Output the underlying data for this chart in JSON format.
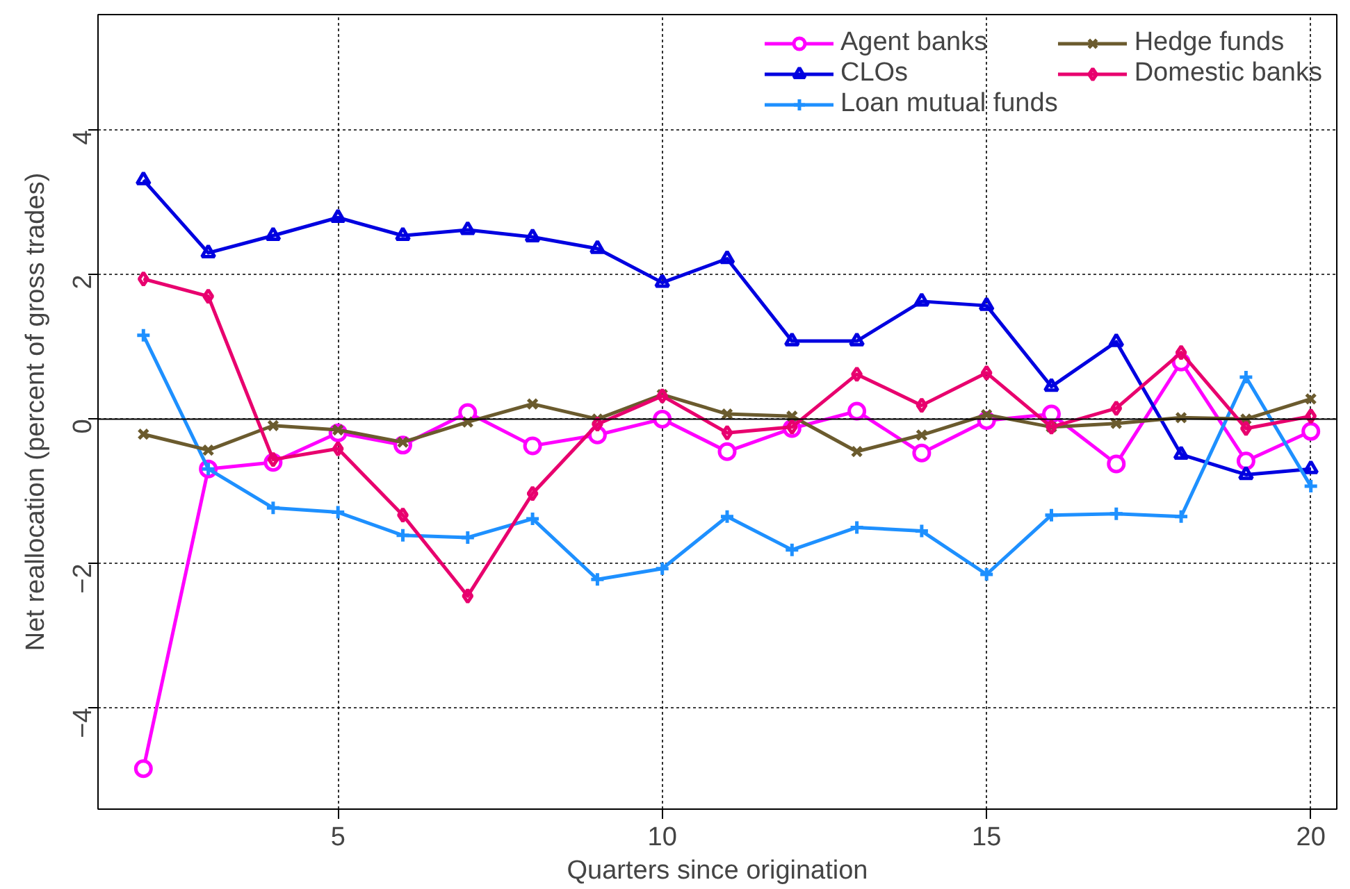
{
  "chart_data": {
    "type": "line",
    "xlabel": "Quarters since origination",
    "ylabel": "Net reallocation (percent of gross trades)",
    "x": [
      2,
      3,
      4,
      5,
      6,
      7,
      8,
      9,
      10,
      11,
      12,
      13,
      14,
      15,
      16,
      17,
      18,
      19,
      20
    ],
    "xlim": [
      1.3,
      20.4
    ],
    "ylim": [
      -5.4,
      5.6
    ],
    "xticks": [
      5,
      10,
      15,
      20
    ],
    "yticks": [
      -4,
      -2,
      0,
      2,
      4
    ],
    "grid": true,
    "legend": "top right",
    "line_style": "solid",
    "ref_lines": [
      {
        "axis": "y",
        "value": 0,
        "color": "#000000",
        "line_style": "solid"
      }
    ],
    "series": [
      {
        "name": "Agent banks",
        "color": "#ff00ff",
        "marker": "circle",
        "values": [
          -4.84,
          -0.69,
          -0.6,
          -0.19,
          -0.36,
          0.09,
          -0.37,
          -0.22,
          0,
          -0.45,
          -0.13,
          0.11,
          -0.47,
          -0.02,
          0.07,
          -0.62,
          0.79,
          -0.58,
          -0.17
        ]
      },
      {
        "name": "CLOs",
        "color": "#0000e0",
        "marker": "triangle",
        "values": [
          3.31,
          2.3,
          2.54,
          2.79,
          2.54,
          2.62,
          2.52,
          2.36,
          1.89,
          2.22,
          1.08,
          1.08,
          1.63,
          1.57,
          0.45,
          1.07,
          -0.49,
          -0.77,
          -0.69
        ]
      },
      {
        "name": "Loan mutual funds",
        "color": "#1e90ff",
        "marker": "cross",
        "values": [
          1.16,
          -0.69,
          -1.23,
          -1.29,
          -1.61,
          -1.64,
          -1.38,
          -2.22,
          -2.07,
          -1.35,
          -1.81,
          -1.5,
          -1.55,
          -2.15,
          -1.33,
          -1.31,
          -1.35,
          0.58,
          -0.93
        ]
      },
      {
        "name": "Hedge funds",
        "color": "#6b5b2e",
        "marker": "x",
        "values": [
          -0.21,
          -0.43,
          -0.09,
          -0.15,
          -0.32,
          -0.04,
          0.21,
          0,
          0.34,
          0.07,
          0.04,
          -0.45,
          -0.22,
          0.06,
          -0.11,
          -0.06,
          0.02,
          0,
          0.28
        ]
      },
      {
        "name": "Domestic banks",
        "color": "#e8006e",
        "marker": "diamond",
        "values": [
          1.94,
          1.7,
          -0.56,
          -0.41,
          -1.33,
          -2.45,
          -1.03,
          -0.07,
          0.32,
          -0.19,
          -0.11,
          0.62,
          0.19,
          0.64,
          -0.11,
          0.15,
          0.92,
          -0.13,
          0.04
        ]
      }
    ]
  }
}
